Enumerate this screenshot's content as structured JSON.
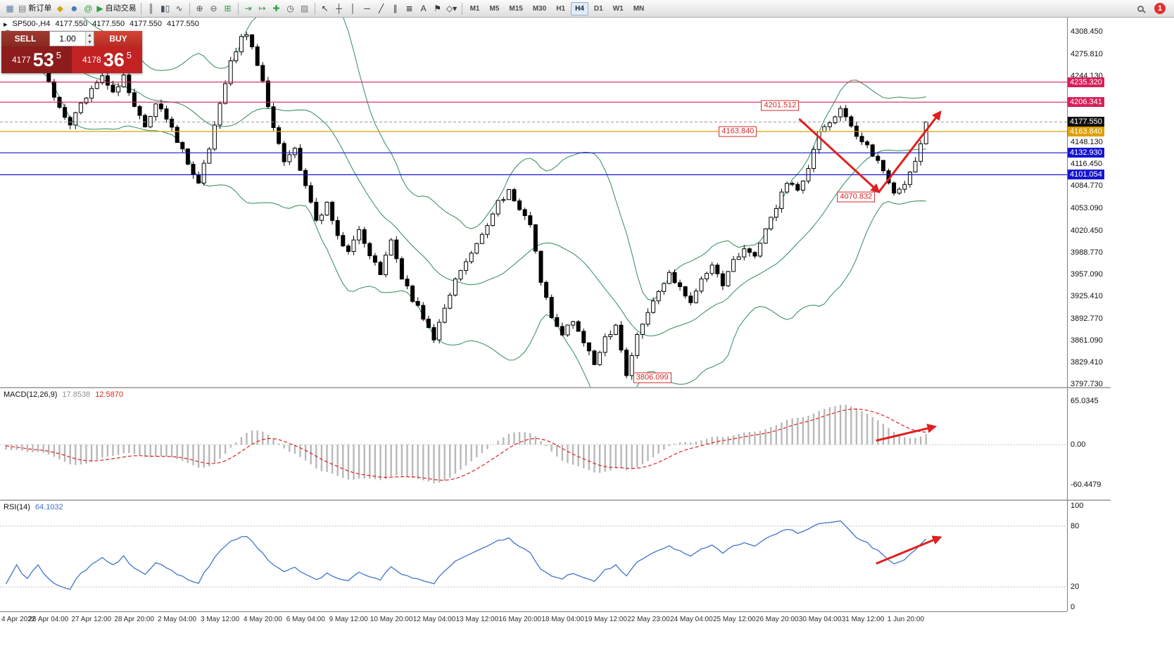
{
  "toolbar": {
    "badge": "1",
    "groups": [
      {
        "items": [
          {
            "name": "terminal-icon",
            "glyph": "▦",
            "color": "#5b7ca3"
          },
          {
            "name": "new-order-button",
            "glyph": "▤",
            "color": "#777777",
            "label": "新订单"
          },
          {
            "name": "navigator-icon",
            "glyph": "◆",
            "color": "#d6a500"
          },
          {
            "name": "profile-icon",
            "glyph": "☻",
            "color": "#3a6fb5"
          },
          {
            "name": "community-icon",
            "glyph": "@",
            "color": "#2e9e3e"
          },
          {
            "name": "autotrading-button",
            "glyph": "▶",
            "color": "#2e9e3e",
            "label": "自动交易"
          }
        ]
      },
      {
        "items": [
          {
            "name": "bar-chart-icon",
            "glyph": "║",
            "color": "#44505c"
          },
          {
            "name": "candlestick-chart-icon",
            "glyph": "▮▯",
            "color": "#44505c"
          },
          {
            "name": "line-chart-icon",
            "glyph": "∿",
            "color": "#44505c"
          }
        ]
      },
      {
        "items": [
          {
            "name": "zoom-in-icon",
            "glyph": "⊕",
            "color": "#555555"
          },
          {
            "name": "zoom-out-icon",
            "glyph": "⊖",
            "color": "#555555"
          },
          {
            "name": "tile-windows-icon",
            "glyph": "⊞",
            "color": "#2e9e3e"
          }
        ]
      },
      {
        "items": [
          {
            "name": "auto-scroll-icon",
            "glyph": "⇥",
            "color": "#2e9e3e"
          },
          {
            "name": "chart-shift-icon",
            "glyph": "↦",
            "color": "#2e9e3e"
          },
          {
            "name": "indicators-icon",
            "glyph": "✚",
            "color": "#2e9e3e"
          },
          {
            "name": "periods-icon",
            "glyph": "◷",
            "color": "#555555"
          },
          {
            "name": "templates-icon",
            "glyph": "▨",
            "color": "#777777"
          }
        ]
      },
      {
        "items": [
          {
            "name": "cursor-icon",
            "glyph": "↖",
            "color": "#333333"
          },
          {
            "name": "crosshair-icon",
            "glyph": "┼",
            "color": "#333333"
          },
          {
            "name": "vertical-line-icon",
            "glyph": "│",
            "color": "#333333"
          },
          {
            "name": "horizontal-line-icon",
            "glyph": "─",
            "color": "#333333"
          },
          {
            "name": "trendline-icon",
            "glyph": "╱",
            "color": "#333333"
          },
          {
            "name": "channel-icon",
            "glyph": "∥",
            "color": "#333333"
          },
          {
            "name": "fibonacci-icon",
            "glyph": "≣",
            "color": "#333333"
          },
          {
            "name": "text-icon",
            "glyph": "A",
            "color": "#333333"
          },
          {
            "name": "label-icon",
            "glyph": "⚑",
            "color": "#333333"
          },
          {
            "name": "shapes-icon",
            "glyph": "◇▾",
            "color": "#333333"
          }
        ]
      }
    ],
    "timeframes": [
      {
        "label": "M1",
        "active": false
      },
      {
        "label": "M5",
        "active": false
      },
      {
        "label": "M15",
        "active": false
      },
      {
        "label": "M30",
        "active": false
      },
      {
        "label": "H1",
        "active": false
      },
      {
        "label": "H4",
        "active": true
      },
      {
        "label": "D1",
        "active": false
      },
      {
        "label": "W1",
        "active": false
      },
      {
        "label": "MN",
        "active": false
      }
    ]
  },
  "chart": {
    "header": {
      "collapse_icon": "▸",
      "title": "SP500-,H4",
      "open": "4177.550",
      "high": "4177.550",
      "low": "4177.550",
      "close": "4177.550"
    },
    "trade_panel": {
      "sell_label": "SELL",
      "buy_label": "BUY",
      "lot": "1.00",
      "spin_up": "▲",
      "spin_down": "▼",
      "sell_small": "4177",
      "sell_big": "53",
      "sell_sup": "5",
      "buy_small": "4178",
      "buy_big": "36",
      "buy_sup": "5"
    },
    "macd_header": {
      "name": "MACD(12,26,9)",
      "main_value": "17.8538",
      "signal_value": "12.5870"
    },
    "rsi_header": {
      "name": "RSI(14)",
      "value": "64.1032"
    }
  },
  "chart_data": {
    "type": "candlestick",
    "symbol": "SP500-",
    "timeframe": "H4",
    "current_price": 4177.55,
    "arrow_color": "#e01f1f",
    "bollinger": {
      "period": 20,
      "deviation": 2,
      "color": "#2e8b57"
    },
    "candle_colors": {
      "bull": "#ffffff",
      "bear": "#000000",
      "outline": "#000000"
    },
    "price_axis": {
      "ticks": [
        {
          "label": "4308.450",
          "price": 4308.45
        },
        {
          "label": "4275.810",
          "price": 4275.81
        },
        {
          "label": "4244.130",
          "price": 4244.13
        },
        {
          "label": "4148.130",
          "price": 4148.13
        },
        {
          "label": "4116.450",
          "price": 4116.45
        },
        {
          "label": "4084.770",
          "price": 4084.77
        },
        {
          "label": "4053.090",
          "price": 4053.09
        },
        {
          "label": "4020.450",
          "price": 4020.45
        },
        {
          "label": "3988.770",
          "price": 3988.77
        },
        {
          "label": "3957.090",
          "price": 3957.09
        },
        {
          "label": "3925.410",
          "price": 3925.41
        },
        {
          "label": "3892.770",
          "price": 3892.77
        },
        {
          "label": "3861.090",
          "price": 3861.09
        },
        {
          "label": "3829.410",
          "price": 3829.41
        },
        {
          "label": "3797.730",
          "price": 3797.73
        }
      ],
      "highlights": [
        {
          "label": "4235.320",
          "price": 4235.32,
          "color": "#d81f5a"
        },
        {
          "label": "4206.341",
          "price": 4206.341,
          "color": "#d81f5a"
        },
        {
          "label": "4177.550",
          "price": 4177.55,
          "color": "#111111"
        },
        {
          "label": "4163.840",
          "price": 4163.84,
          "color": "#dea100"
        },
        {
          "label": "4132.930",
          "price": 4132.93,
          "color": "#1515cf"
        },
        {
          "label": "4101.054",
          "price": 4101.054,
          "color": "#1515cf"
        }
      ]
    },
    "levels": [
      {
        "price": 4235.32,
        "color": "#d81f5a"
      },
      {
        "price": 4206.341,
        "color": "#d81f5a"
      },
      {
        "price": 4163.84,
        "color": "#dea100"
      },
      {
        "price": 4132.93,
        "color": "#1515cf"
      },
      {
        "price": 4101.054,
        "color": "#1515cf"
      }
    ],
    "annotations": [
      {
        "text": "4201.512",
        "index": 148.6,
        "price": 4201.5,
        "align": "right"
      },
      {
        "text": "4163.840",
        "index": 140.7,
        "price": 4163.84,
        "align": "right"
      },
      {
        "text": "4070.832",
        "index": 162.8,
        "price": 4068.9,
        "align": "right"
      },
      {
        "text": "3806.099",
        "index": 117.6,
        "price": 3806.9,
        "align": "left"
      }
    ],
    "trend_arrows": [
      {
        "from": [
          148.6,
          4182
        ],
        "to": [
          163.5,
          4076
        ]
      },
      {
        "from": [
          163.5,
          4076
        ],
        "to": [
          175,
          4192
        ]
      }
    ],
    "price_path": [
      [
        -40,
        4290
      ],
      [
        -30,
        4305
      ],
      [
        -20,
        4315
      ],
      [
        -12,
        4330
      ],
      [
        -6,
        4310
      ],
      [
        -2,
        4285
      ],
      [
        0,
        4272
      ],
      [
        2,
        4292
      ],
      [
        4,
        4260
      ],
      [
        6,
        4282
      ],
      [
        8,
        4235
      ],
      [
        10,
        4195
      ],
      [
        12,
        4170
      ],
      [
        14,
        4205
      ],
      [
        16,
        4228
      ],
      [
        18,
        4248
      ],
      [
        20,
        4222
      ],
      [
        22,
        4242
      ],
      [
        24,
        4200
      ],
      [
        26,
        4172
      ],
      [
        28,
        4208
      ],
      [
        30,
        4185
      ],
      [
        32,
        4152
      ],
      [
        34,
        4118
      ],
      [
        36,
        4088
      ],
      [
        38,
        4140
      ],
      [
        40,
        4200
      ],
      [
        42,
        4262
      ],
      [
        44,
        4300
      ],
      [
        45,
        4307
      ],
      [
        46,
        4282
      ],
      [
        48,
        4235
      ],
      [
        50,
        4168
      ],
      [
        52,
        4120
      ],
      [
        54,
        4138
      ],
      [
        56,
        4082
      ],
      [
        58,
        4032
      ],
      [
        60,
        4062
      ],
      [
        62,
        4010
      ],
      [
        64,
        3990
      ],
      [
        66,
        4022
      ],
      [
        68,
        3982
      ],
      [
        70,
        3960
      ],
      [
        72,
        4006
      ],
      [
        74,
        3952
      ],
      [
        76,
        3922
      ],
      [
        78,
        3895
      ],
      [
        80,
        3865
      ],
      [
        82,
        3910
      ],
      [
        84,
        3950
      ],
      [
        86,
        3976
      ],
      [
        88,
        4000
      ],
      [
        90,
        4030
      ],
      [
        92,
        4060
      ],
      [
        94,
        4076
      ],
      [
        96,
        4050
      ],
      [
        98,
        4030
      ],
      [
        100,
        3945
      ],
      [
        102,
        3898
      ],
      [
        104,
        3870
      ],
      [
        106,
        3890
      ],
      [
        108,
        3856
      ],
      [
        110,
        3830
      ],
      [
        112,
        3862
      ],
      [
        114,
        3884
      ],
      [
        116,
        3812
      ],
      [
        118,
        3866
      ],
      [
        120,
        3900
      ],
      [
        122,
        3930
      ],
      [
        124,
        3956
      ],
      [
        126,
        3940
      ],
      [
        128,
        3916
      ],
      [
        130,
        3950
      ],
      [
        132,
        3970
      ],
      [
        134,
        3943
      ],
      [
        136,
        3976
      ],
      [
        138,
        3996
      ],
      [
        140,
        3986
      ],
      [
        142,
        4020
      ],
      [
        144,
        4056
      ],
      [
        146,
        4090
      ],
      [
        148,
        4076
      ],
      [
        150,
        4110
      ],
      [
        152,
        4160
      ],
      [
        154,
        4180
      ],
      [
        156,
        4196
      ],
      [
        158,
        4170
      ],
      [
        160,
        4150
      ],
      [
        162,
        4130
      ],
      [
        164,
        4110
      ],
      [
        166,
        4074
      ],
      [
        168,
        4090
      ],
      [
        170,
        4120
      ],
      [
        172,
        4177.55
      ]
    ],
    "pins": [
      {
        "index": 45,
        "field": "high",
        "value": 4308.0
      },
      {
        "index": 116,
        "field": "low",
        "value": 3806.099
      },
      {
        "index": 156,
        "field": "high",
        "value": 4201.512
      },
      {
        "index": 166,
        "field": "low",
        "value": 4070.832
      },
      {
        "index": 172,
        "field": "close",
        "value": 4177.55
      }
    ],
    "macd": {
      "axis": [
        {
          "label": "65.0345",
          "value": 65.0345
        },
        {
          "label": "0.00",
          "value": 0
        },
        {
          "label": "-60.4479",
          "value": -60.4479
        }
      ],
      "histogram_color": "#b8b8b8",
      "signal_color": "#e02020",
      "arrow": {
        "from": [
          163,
          6
        ],
        "to": [
          174,
          27
        ]
      }
    },
    "rsi": {
      "axis": [
        {
          "label": "100",
          "value": 100
        },
        {
          "label": "80",
          "value": 80
        },
        {
          "label": "20",
          "value": 20
        },
        {
          "label": "0",
          "value": 0
        }
      ],
      "levels": [
        80,
        20
      ],
      "line_color": "#3e76cc",
      "arrow": {
        "from": [
          163,
          43
        ],
        "to": [
          175,
          69
        ]
      }
    },
    "time_labels": [
      "4 Apr 2022",
      "26 Apr 04:00",
      "27 Apr 12:00",
      "28 Apr 20:00",
      "2 May 04:00",
      "3 May 12:00",
      "4 May 20:00",
      "6 May 04:00",
      "9 May 12:00",
      "10 May 20:00",
      "12 May 04:00",
      "13 May 12:00",
      "16 May 20:00",
      "18 May 04:00",
      "19 May 12:00",
      "22 May 23:00",
      "24 May 04:00",
      "25 May 12:00",
      "26 May 20:00",
      "30 May 04:00",
      "31 May 12:00",
      "1 Jun 20:00"
    ]
  }
}
